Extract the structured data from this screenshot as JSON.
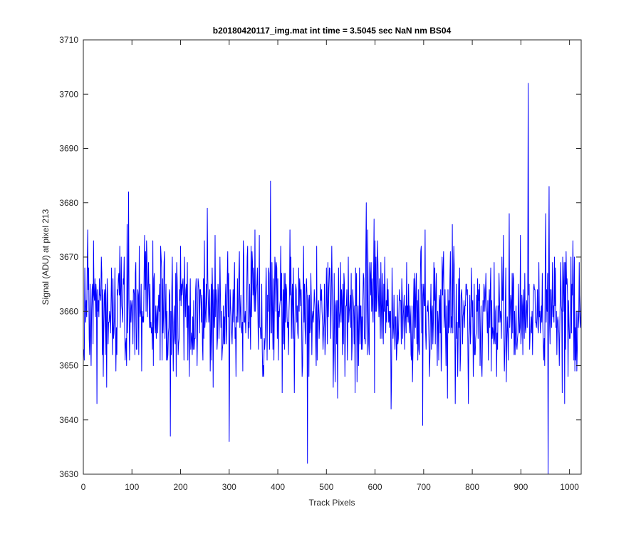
{
  "chart_data": {
    "type": "line",
    "title": "b20180420117_img.mat int time = 3.5045 sec  NaN nm BS04",
    "xlabel": "Track Pixels",
    "ylabel": "Signal (ADU) at pixel 213",
    "xlim": [
      0,
      1024
    ],
    "ylim": [
      3630,
      3710
    ],
    "xticks": [
      0,
      100,
      200,
      300,
      400,
      500,
      600,
      700,
      800,
      900,
      1000
    ],
    "yticks": [
      3630,
      3640,
      3650,
      3660,
      3670,
      3680,
      3690,
      3700,
      3710
    ],
    "grid": false,
    "legend": "none",
    "series": [
      {
        "color": "#0000ff",
        "noise_mean": 3660,
        "noise_std": 6,
        "n_points": 1024,
        "peaks": [
          {
            "x": 92,
            "y": 3682
          },
          {
            "x": 178,
            "y": 3637
          },
          {
            "x": 254,
            "y": 3679
          },
          {
            "x": 299,
            "y": 3636
          },
          {
            "x": 384,
            "y": 3684
          },
          {
            "x": 460,
            "y": 3632
          },
          {
            "x": 581,
            "y": 3680
          },
          {
            "x": 697,
            "y": 3639
          },
          {
            "x": 914,
            "y": 3702
          },
          {
            "x": 955,
            "y": 3630
          },
          {
            "x": 957,
            "y": 3683
          }
        ]
      }
    ]
  }
}
